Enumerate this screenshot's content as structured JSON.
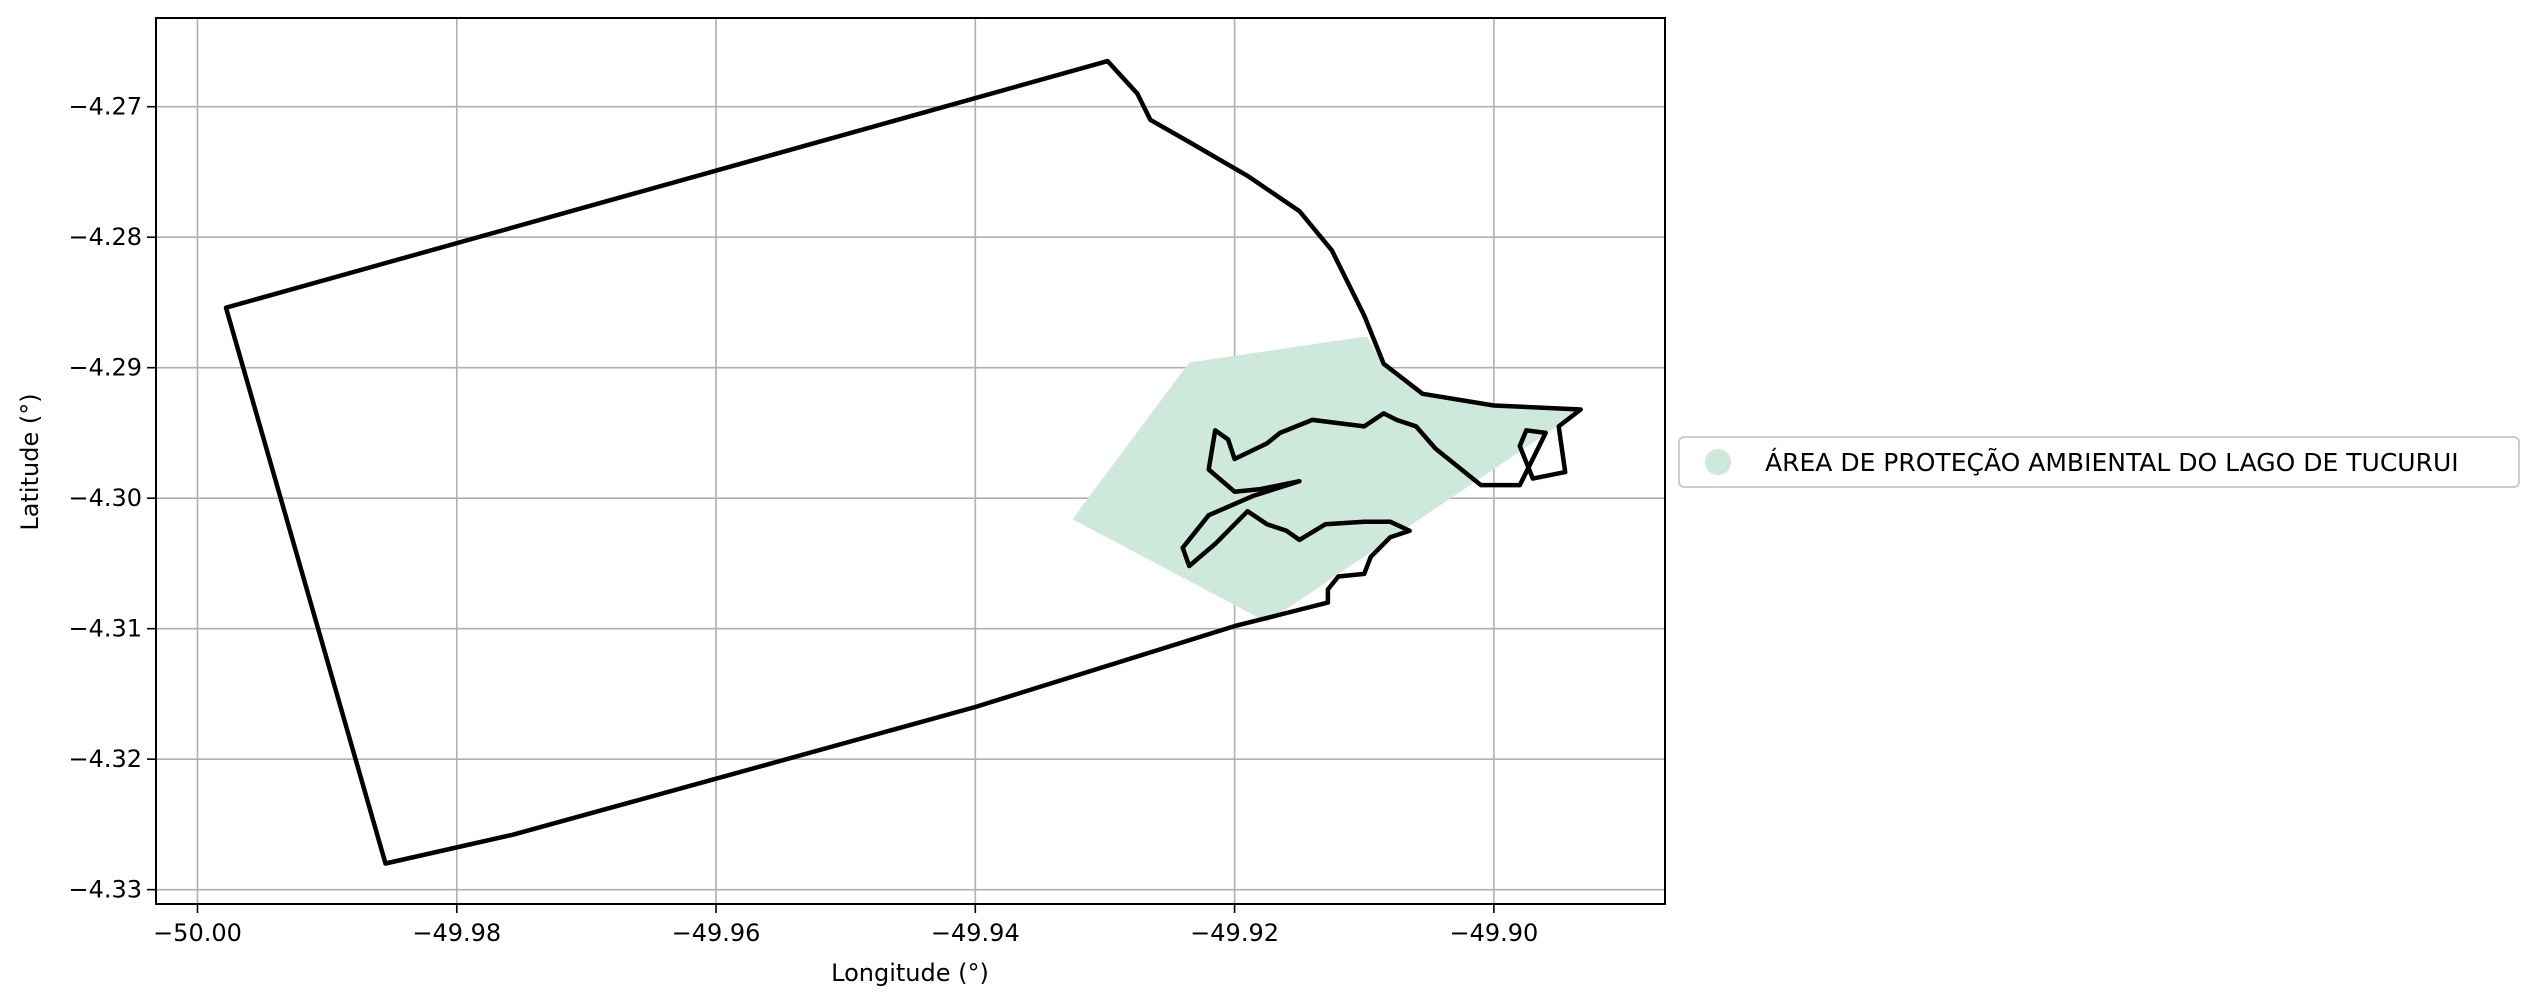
{
  "chart_data": {
    "type": "map",
    "xlabel": "Longitude (°)",
    "ylabel": "Latitude (°)",
    "xlim": [
      -50.0032,
      -49.8868
    ],
    "ylim": [
      -4.3311,
      -4.2632
    ],
    "xticks": [
      {
        "value": -50.0,
        "label": "−50.00"
      },
      {
        "value": -49.98,
        "label": "−49.98"
      },
      {
        "value": -49.96,
        "label": "−49.96"
      },
      {
        "value": -49.94,
        "label": "−49.94"
      },
      {
        "value": -49.92,
        "label": "−49.92"
      },
      {
        "value": -49.9,
        "label": "−49.90"
      }
    ],
    "yticks": [
      {
        "value": -4.27,
        "label": "−4.27"
      },
      {
        "value": -4.28,
        "label": "−4.28"
      },
      {
        "value": -4.29,
        "label": "−4.29"
      },
      {
        "value": -4.3,
        "label": "−4.30"
      },
      {
        "value": -4.31,
        "label": "−4.31"
      },
      {
        "value": -4.32,
        "label": "−4.32"
      },
      {
        "value": -4.33,
        "label": "−4.33"
      }
    ],
    "grid": true,
    "legend_placement": "center-right outside",
    "legend": [
      {
        "label": "ÁREA DE PROTEÇÃO AMBIENTAL DO LAGO DE TUCURUI",
        "color": "#cce9dc",
        "marker": "circle"
      }
    ],
    "layers": [
      {
        "name": "ÁREA DE PROTEÇÃO AMBIENTAL DO LAGO DE TUCURUI",
        "fill": "#cce9dc",
        "coordinates": [
          [
            -49.9235,
            -4.2896
          ],
          [
            -49.9098,
            -4.2876
          ],
          [
            -49.9085,
            -4.2898
          ],
          [
            -49.9053,
            -4.2922
          ],
          [
            -49.8998,
            -4.2929
          ],
          [
            -49.8932,
            -4.2932
          ],
          [
            -49.9175,
            -4.3095
          ],
          [
            -49.9325,
            -4.3016
          ]
        ]
      }
    ],
    "boundary": {
      "stroke": "#000000",
      "coordinates": [
        [
          -49.9298,
          -4.2665
        ],
        [
          -49.9275,
          -4.269
        ],
        [
          -49.9265,
          -4.271
        ],
        [
          -49.9235,
          -4.2727
        ],
        [
          -49.919,
          -4.2753
        ],
        [
          -49.915,
          -4.278
        ],
        [
          -49.9125,
          -4.281
        ],
        [
          -49.91,
          -4.286
        ],
        [
          -49.9085,
          -4.2897
        ],
        [
          -49.9055,
          -4.292
        ],
        [
          -49.9,
          -4.2929
        ],
        [
          -49.8933,
          -4.2932
        ],
        [
          -49.895,
          -4.2945
        ],
        [
          -49.8945,
          -4.298
        ],
        [
          -49.897,
          -4.2985
        ],
        [
          -49.898,
          -4.296
        ],
        [
          -49.8975,
          -4.2948
        ],
        [
          -49.896,
          -4.295
        ],
        [
          -49.898,
          -4.299
        ],
        [
          -49.901,
          -4.299
        ],
        [
          -49.9025,
          -4.2978
        ],
        [
          -49.9045,
          -4.2962
        ],
        [
          -49.906,
          -4.2945
        ],
        [
          -49.9075,
          -4.294
        ],
        [
          -49.9085,
          -4.2935
        ],
        [
          -49.91,
          -4.2945
        ],
        [
          -49.914,
          -4.294
        ],
        [
          -49.9165,
          -4.295
        ],
        [
          -49.9175,
          -4.2958
        ],
        [
          -49.92,
          -4.297
        ],
        [
          -49.9205,
          -4.2955
        ],
        [
          -49.9215,
          -4.2948
        ],
        [
          -49.922,
          -4.2978
        ],
        [
          -49.92,
          -4.2995
        ],
        [
          -49.918,
          -4.2993
        ],
        [
          -49.915,
          -4.2987
        ],
        [
          -49.9185,
          -4.2998
        ],
        [
          -49.922,
          -4.3013
        ],
        [
          -49.924,
          -4.3038
        ],
        [
          -49.9235,
          -4.3052
        ],
        [
          -49.9215,
          -4.3035
        ],
        [
          -49.92,
          -4.302
        ],
        [
          -49.919,
          -4.301
        ],
        [
          -49.9175,
          -4.302
        ],
        [
          -49.916,
          -4.3025
        ],
        [
          -49.915,
          -4.3032
        ],
        [
          -49.913,
          -4.302
        ],
        [
          -49.91,
          -4.3018
        ],
        [
          -49.908,
          -4.3018
        ],
        [
          -49.9065,
          -4.3025
        ],
        [
          -49.908,
          -4.303
        ],
        [
          -49.9095,
          -4.3045
        ],
        [
          -49.91,
          -4.3058
        ],
        [
          -49.912,
          -4.306
        ],
        [
          -49.9128,
          -4.307
        ],
        [
          -49.9128,
          -4.308
        ],
        [
          -49.916,
          -4.3088
        ],
        [
          -49.92,
          -4.3098
        ],
        [
          -49.94,
          -4.316
        ],
        [
          -49.96,
          -4.3215
        ],
        [
          -49.9757,
          -4.3258
        ],
        [
          -49.9855,
          -4.328
        ],
        [
          -49.9978,
          -4.2854
        ],
        [
          -49.9298,
          -4.2665
        ]
      ]
    }
  }
}
